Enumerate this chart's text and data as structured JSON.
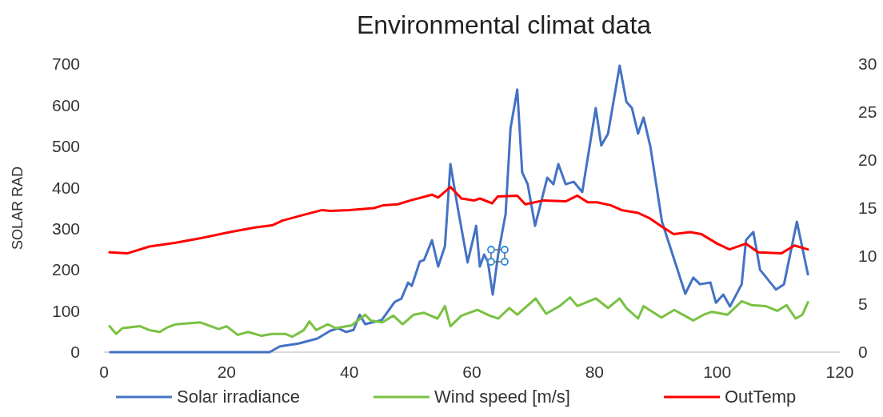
{
  "chart_data": {
    "type": "line",
    "title": "Environmental climat data",
    "ylabel": "SOLAR RAD",
    "xlim": [
      0,
      120
    ],
    "xticks": [
      0,
      20,
      40,
      60,
      80,
      100,
      120
    ],
    "ylim": [
      0,
      700
    ],
    "yticks": [
      0,
      100,
      200,
      300,
      400,
      500,
      600,
      700
    ],
    "y2lim": [
      0,
      30
    ],
    "y2ticks": [
      0,
      5,
      10,
      15,
      20,
      25,
      30
    ],
    "grid": false,
    "legend": "bottom",
    "marker": "none",
    "line_style": "solid",
    "series": [
      {
        "name": "Solar irradiance",
        "color": "#4472c4",
        "x": [
          1,
          10,
          20,
          27,
          28.7,
          31.7,
          34.8,
          36.9,
          38.2,
          39.5,
          40.7,
          41.7,
          42.6,
          45.3,
          47.4,
          48.5,
          49.6,
          50.2,
          51.5,
          52.2,
          53.5,
          54.5,
          55.6,
          56.5,
          57.7,
          59.3,
          60.7,
          61.3,
          62,
          62.6,
          63.4,
          64.3,
          65.5,
          66.3,
          67.4,
          68.2,
          69.1,
          70.3,
          72.3,
          73.3,
          74.1,
          75.3,
          76.6,
          78,
          80.2,
          81.1,
          82.2,
          84.1,
          85.2,
          86.1,
          87.1,
          88,
          89.1,
          91,
          94.8,
          96.1,
          97.2,
          98.9,
          99.8,
          101,
          102.1,
          104,
          104.7,
          105.9,
          107,
          109.6,
          110.9,
          113,
          114.8
        ],
        "values": [
          0,
          0,
          0,
          0,
          14,
          21,
          33,
          52,
          58,
          49,
          54,
          91,
          68,
          78,
          122,
          130,
          169,
          161,
          220,
          224,
          272,
          208,
          257,
          457,
          350,
          218,
          307,
          208,
          237,
          220,
          140,
          239,
          336,
          544,
          638,
          437,
          408,
          307,
          424,
          408,
          457,
          408,
          414,
          389,
          593,
          502,
          531,
          696,
          608,
          593,
          531,
          570,
          500,
          317,
          142,
          181,
          165,
          169,
          120,
          140,
          111,
          165,
          272,
          292,
          200,
          152,
          165,
          317,
          189
        ]
      },
      {
        "name": "Wind speed [m/s]",
        "color": "#7ac143",
        "axis": "y2",
        "x": [
          0.9,
          2,
          3,
          5.9,
          7.4,
          9.1,
          10.4,
          11.7,
          15.7,
          18.7,
          20,
          21.8,
          23.5,
          25.7,
          27.4,
          29.6,
          30.7,
          32.6,
          33.5,
          34.6,
          36.5,
          37.8,
          40.4,
          42.6,
          43.5,
          45.4,
          47.2,
          48.7,
          50.5,
          52.2,
          54.4,
          55.6,
          56.5,
          58.3,
          60.9,
          62.9,
          64.3,
          66.1,
          67.4,
          70.4,
          72.1,
          74.3,
          76,
          77.2,
          80.2,
          82.2,
          84.1,
          85.2,
          87.1,
          88,
          90.9,
          93,
          96.1,
          97.8,
          99.1,
          101.7,
          104,
          105.6,
          107.9,
          109.8,
          111.3,
          112.8,
          113.9,
          114.8
        ],
        "values": [
          2.7,
          1.9,
          2.5,
          2.7,
          2.3,
          2.1,
          2.6,
          2.9,
          3.1,
          2.4,
          2.7,
          1.8,
          2.1,
          1.7,
          1.9,
          1.9,
          1.6,
          2.3,
          3.2,
          2.3,
          2.9,
          2.5,
          2.8,
          3.9,
          3.3,
          3.1,
          3.8,
          2.9,
          3.9,
          4.1,
          3.5,
          4.8,
          2.7,
          3.8,
          4.4,
          3.8,
          3.5,
          4.6,
          3.9,
          5.6,
          4,
          4.8,
          5.7,
          4.8,
          5.6,
          4.6,
          5.6,
          4.6,
          3.5,
          4.8,
          3.6,
          4.4,
          3.3,
          3.9,
          4.2,
          3.9,
          5.3,
          4.9,
          4.8,
          4.3,
          4.9,
          3.5,
          3.9,
          5.2
        ]
      },
      {
        "name": "OutTemp",
        "color": "#ff0000",
        "axis": "y2",
        "x": [
          0.9,
          3.9,
          7.4,
          11.7,
          16,
          20.5,
          24.8,
          27.4,
          29.1,
          32.6,
          35.6,
          36.9,
          40,
          44,
          45.6,
          47.9,
          50,
          53.5,
          54.5,
          56.5,
          58.3,
          60.4,
          61.3,
          63.3,
          64.2,
          67.4,
          68.7,
          71.7,
          75.3,
          77.2,
          78.9,
          80.4,
          82.6,
          84.4,
          87.1,
          89.1,
          90.9,
          92.9,
          95.6,
          97.4,
          100,
          102,
          104.7,
          106.7,
          110.5,
          112.6,
          114.8
        ],
        "values": [
          10.4,
          10.3,
          11,
          11.4,
          11.9,
          12.5,
          13,
          13.2,
          13.7,
          14.3,
          14.8,
          14.7,
          14.8,
          15,
          15.3,
          15.4,
          15.8,
          16.4,
          16.1,
          17.2,
          16,
          15.8,
          16,
          15.5,
          16.2,
          16.3,
          15.4,
          15.8,
          15.7,
          16.3,
          15.6,
          15.6,
          15.3,
          14.8,
          14.5,
          13.9,
          13.1,
          12.3,
          12.5,
          12.3,
          11.3,
          10.7,
          11.3,
          10.4,
          10.3,
          11.1,
          10.7
        ]
      }
    ]
  }
}
